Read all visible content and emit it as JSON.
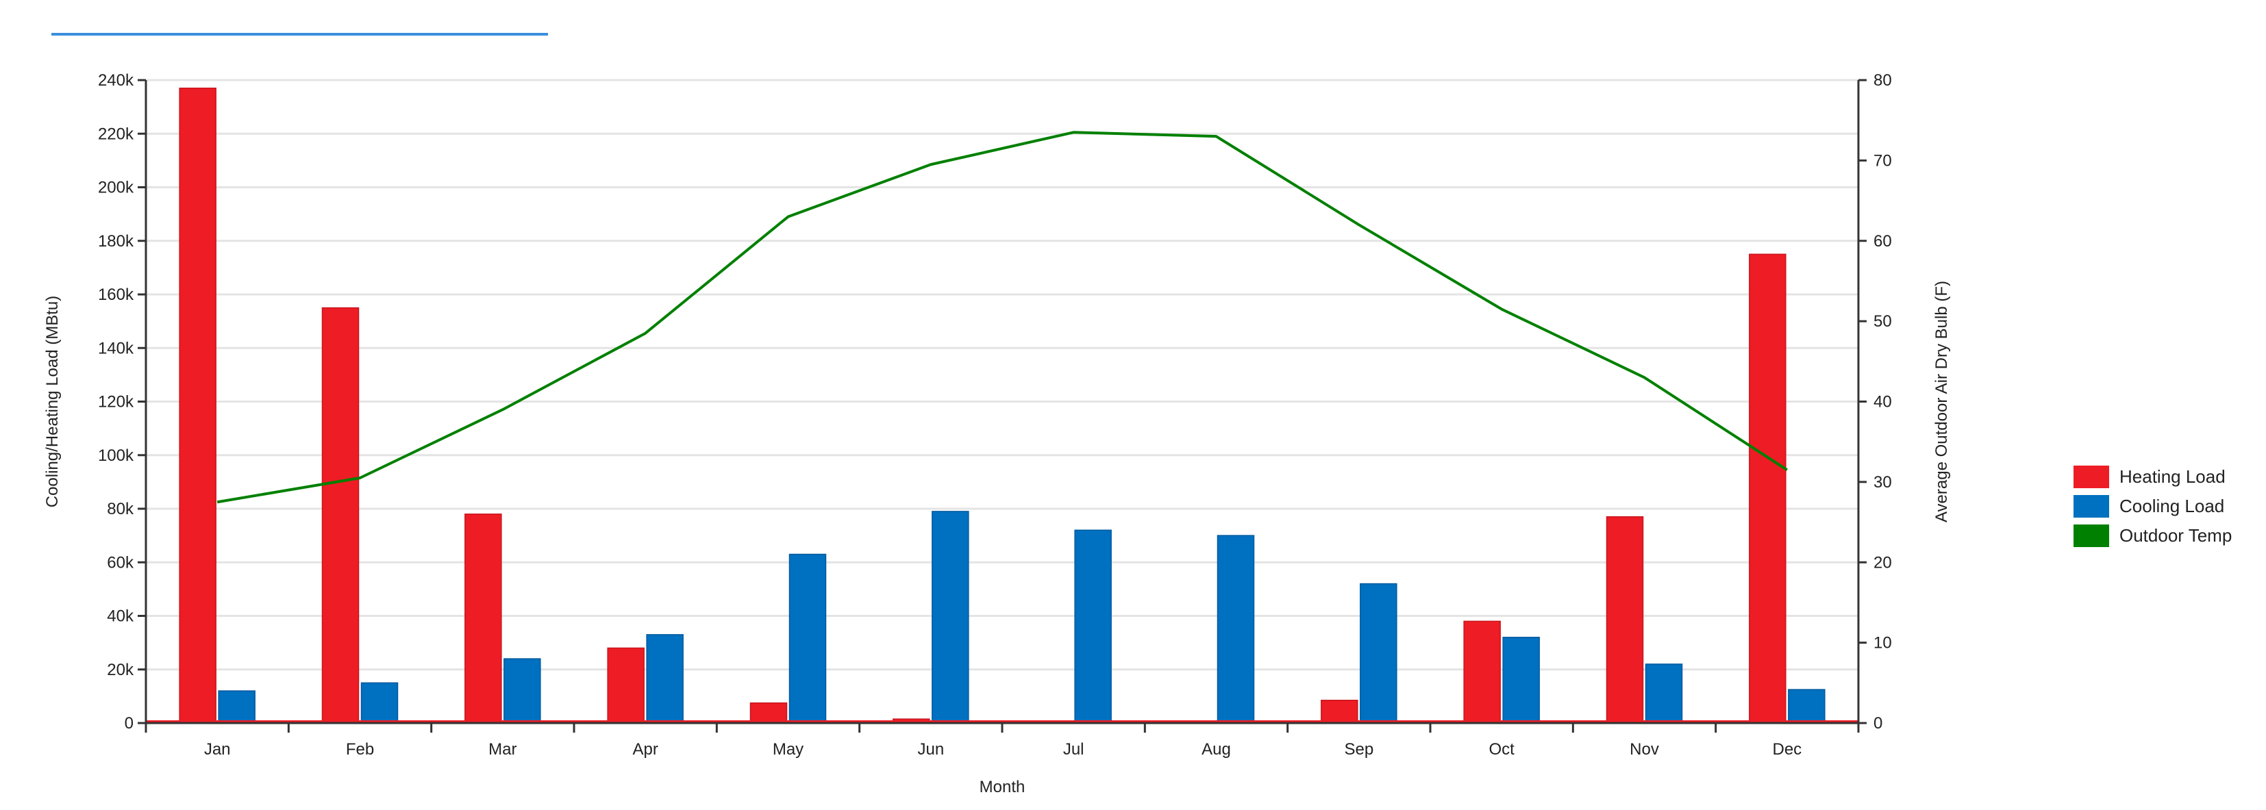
{
  "chart_data": {
    "type": "bar",
    "title": "",
    "xlabel": "Month",
    "ylabel": "Cooling/Heating Load (MBtu)",
    "y2label": "Average Outdoor Air Dry Bulb (F)",
    "categories": [
      "Jan",
      "Feb",
      "Mar",
      "Apr",
      "May",
      "Jun",
      "Jul",
      "Aug",
      "Sep",
      "Oct",
      "Nov",
      "Dec"
    ],
    "ylim": [
      0,
      240000
    ],
    "y_ticks": [
      {
        "value": 0,
        "label": "0"
      },
      {
        "value": 20000,
        "label": "20k"
      },
      {
        "value": 40000,
        "label": "40k"
      },
      {
        "value": 60000,
        "label": "60k"
      },
      {
        "value": 80000,
        "label": "80k"
      },
      {
        "value": 100000,
        "label": "100k"
      },
      {
        "value": 120000,
        "label": "120k"
      },
      {
        "value": 140000,
        "label": "140k"
      },
      {
        "value": 160000,
        "label": "160k"
      },
      {
        "value": 180000,
        "label": "180k"
      },
      {
        "value": 200000,
        "label": "200k"
      },
      {
        "value": 220000,
        "label": "220k"
      },
      {
        "value": 240000,
        "label": "240k"
      }
    ],
    "y2lim": [
      0,
      80
    ],
    "y2_ticks": [
      {
        "value": 0,
        "label": "0"
      },
      {
        "value": 10,
        "label": "10"
      },
      {
        "value": 20,
        "label": "20"
      },
      {
        "value": 30,
        "label": "30"
      },
      {
        "value": 40,
        "label": "40"
      },
      {
        "value": 50,
        "label": "50"
      },
      {
        "value": 60,
        "label": "60"
      },
      {
        "value": 70,
        "label": "70"
      },
      {
        "value": 80,
        "label": "80"
      }
    ],
    "grid": true,
    "legend_position": "right",
    "series": [
      {
        "name": "Heating Load",
        "type": "bar",
        "axis": "left",
        "color": "#ee1c25",
        "values": [
          237000,
          155000,
          78000,
          28000,
          7500,
          1500,
          500,
          500,
          8500,
          38000,
          77000,
          175000
        ]
      },
      {
        "name": "Cooling Load",
        "type": "bar",
        "axis": "left",
        "color": "#0070c0",
        "values": [
          12000,
          15000,
          24000,
          33000,
          63000,
          79000,
          72000,
          70000,
          52000,
          32000,
          22000,
          12500
        ]
      },
      {
        "name": "Outdoor Temp",
        "type": "line",
        "axis": "right",
        "color": "#008000",
        "values": [
          27.5,
          30.5,
          39,
          48.5,
          63,
          69.5,
          73.5,
          73,
          62,
          51.5,
          43,
          31.5
        ]
      }
    ]
  }
}
